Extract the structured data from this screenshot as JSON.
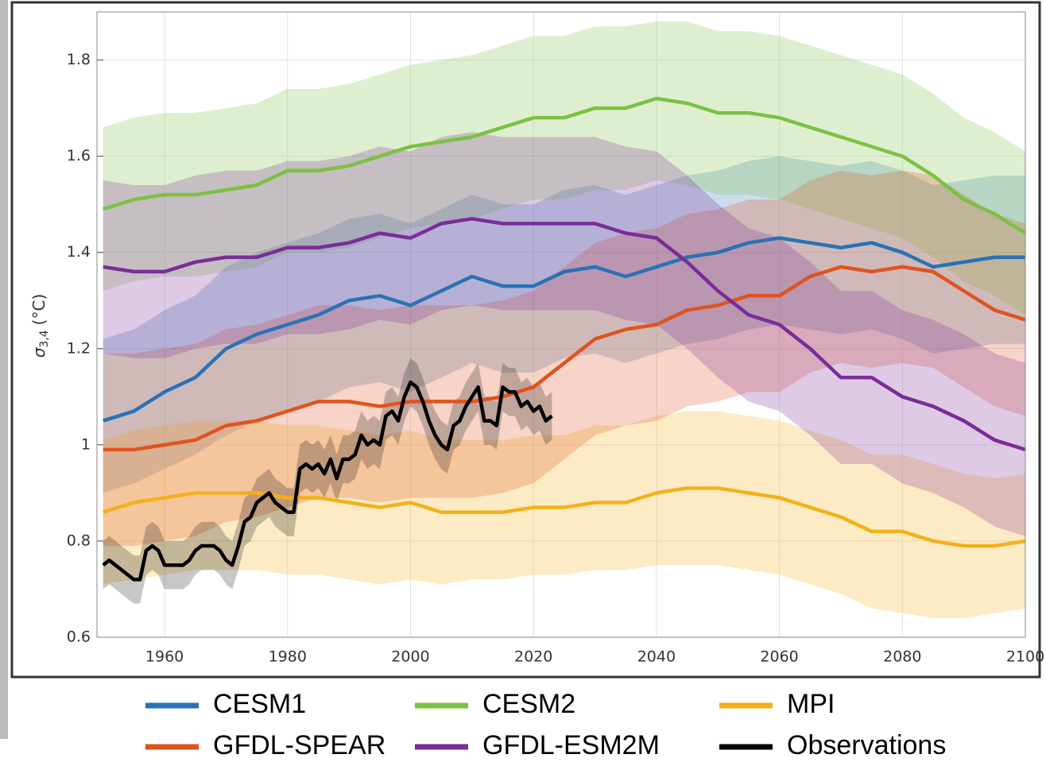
{
  "chart_data": {
    "type": "line",
    "ylabel_symbol": "σ",
    "ylabel_subscript": "3,4",
    "ylabel_unit": "(°C)",
    "xlim": [
      1949,
      2100
    ],
    "ylim": [
      0.6,
      1.9
    ],
    "xticks": [
      1960,
      1980,
      2000,
      2020,
      2040,
      2060,
      2080,
      2100
    ],
    "yticks": [
      0.6,
      0.8,
      1,
      1.2,
      1.4,
      1.6,
      1.8
    ],
    "grid": true,
    "legend": "bottom",
    "x": [
      1950,
      1955,
      1960,
      1965,
      1970,
      1975,
      1980,
      1985,
      1990,
      1995,
      2000,
      2005,
      2010,
      2015,
      2020,
      2025,
      2030,
      2035,
      2040,
      2045,
      2050,
      2055,
      2060,
      2065,
      2070,
      2075,
      2080,
      2085,
      2090,
      2095,
      2100
    ],
    "series": [
      {
        "name": "CESM1",
        "color": "#2a72b5",
        "values": [
          1.05,
          1.07,
          1.11,
          1.14,
          1.2,
          1.23,
          1.25,
          1.27,
          1.3,
          1.31,
          1.29,
          1.32,
          1.35,
          1.33,
          1.33,
          1.36,
          1.37,
          1.35,
          1.37,
          1.39,
          1.4,
          1.42,
          1.43,
          1.42,
          1.41,
          1.42,
          1.4,
          1.37,
          1.38,
          1.39,
          1.39
        ],
        "band_lower": [
          0.9,
          0.92,
          0.95,
          0.98,
          1.02,
          1.05,
          1.07,
          1.09,
          1.12,
          1.13,
          1.11,
          1.14,
          1.17,
          1.15,
          1.15,
          1.18,
          1.19,
          1.17,
          1.19,
          1.21,
          1.22,
          1.24,
          1.25,
          1.24,
          1.23,
          1.24,
          1.22,
          1.19,
          1.2,
          1.21,
          1.21
        ],
        "band_upper": [
          1.22,
          1.24,
          1.28,
          1.31,
          1.37,
          1.4,
          1.42,
          1.44,
          1.47,
          1.48,
          1.46,
          1.49,
          1.52,
          1.5,
          1.5,
          1.53,
          1.54,
          1.52,
          1.54,
          1.56,
          1.57,
          1.59,
          1.6,
          1.59,
          1.58,
          1.59,
          1.57,
          1.54,
          1.55,
          1.56,
          1.56
        ]
      },
      {
        "name": "CESM2",
        "color": "#7cc143",
        "values": [
          1.49,
          1.51,
          1.52,
          1.52,
          1.53,
          1.54,
          1.57,
          1.57,
          1.58,
          1.6,
          1.62,
          1.63,
          1.64,
          1.66,
          1.68,
          1.68,
          1.7,
          1.7,
          1.72,
          1.71,
          1.69,
          1.69,
          1.68,
          1.66,
          1.64,
          1.62,
          1.6,
          1.56,
          1.51,
          1.48,
          1.44
        ],
        "band_lower": [
          1.32,
          1.34,
          1.35,
          1.35,
          1.36,
          1.37,
          1.4,
          1.4,
          1.41,
          1.43,
          1.45,
          1.46,
          1.47,
          1.49,
          1.51,
          1.51,
          1.53,
          1.53,
          1.55,
          1.54,
          1.52,
          1.52,
          1.51,
          1.49,
          1.47,
          1.45,
          1.43,
          1.39,
          1.34,
          1.31,
          1.27
        ],
        "band_upper": [
          1.66,
          1.68,
          1.69,
          1.69,
          1.7,
          1.71,
          1.74,
          1.74,
          1.75,
          1.77,
          1.79,
          1.8,
          1.81,
          1.83,
          1.85,
          1.85,
          1.87,
          1.87,
          1.88,
          1.88,
          1.86,
          1.86,
          1.85,
          1.83,
          1.81,
          1.79,
          1.77,
          1.73,
          1.68,
          1.65,
          1.61
        ]
      },
      {
        "name": "MPI",
        "color": "#f4b019",
        "values": [
          0.86,
          0.88,
          0.89,
          0.9,
          0.9,
          0.9,
          0.89,
          0.89,
          0.88,
          0.87,
          0.88,
          0.86,
          0.86,
          0.86,
          0.87,
          0.87,
          0.88,
          0.88,
          0.9,
          0.91,
          0.91,
          0.9,
          0.89,
          0.87,
          0.85,
          0.82,
          0.82,
          0.8,
          0.79,
          0.79,
          0.8
        ],
        "band_lower": [
          0.71,
          0.72,
          0.73,
          0.74,
          0.74,
          0.74,
          0.73,
          0.73,
          0.72,
          0.71,
          0.72,
          0.71,
          0.72,
          0.72,
          0.73,
          0.73,
          0.74,
          0.74,
          0.75,
          0.75,
          0.75,
          0.74,
          0.73,
          0.71,
          0.69,
          0.66,
          0.65,
          0.64,
          0.64,
          0.65,
          0.66
        ],
        "band_upper": [
          1.01,
          1.03,
          1.04,
          1.05,
          1.05,
          1.05,
          1.04,
          1.04,
          1.03,
          1.02,
          1.03,
          1.01,
          1.01,
          1.01,
          1.02,
          1.02,
          1.04,
          1.04,
          1.06,
          1.07,
          1.07,
          1.06,
          1.05,
          1.03,
          1.01,
          0.98,
          0.98,
          0.96,
          0.94,
          0.93,
          0.94
        ]
      },
      {
        "name": "GFDL-SPEAR",
        "color": "#e0531f",
        "values": [
          0.99,
          0.99,
          1.0,
          1.01,
          1.04,
          1.05,
          1.07,
          1.09,
          1.09,
          1.08,
          1.09,
          1.09,
          1.09,
          1.1,
          1.12,
          1.17,
          1.22,
          1.24,
          1.25,
          1.28,
          1.29,
          1.31,
          1.31,
          1.35,
          1.37,
          1.36,
          1.37,
          1.36,
          1.32,
          1.28,
          1.26
        ],
        "band_lower": [
          0.79,
          0.79,
          0.8,
          0.81,
          0.84,
          0.85,
          0.87,
          0.89,
          0.89,
          0.88,
          0.89,
          0.89,
          0.89,
          0.9,
          0.92,
          0.97,
          1.02,
          1.04,
          1.05,
          1.08,
          1.09,
          1.11,
          1.11,
          1.15,
          1.17,
          1.16,
          1.17,
          1.16,
          1.12,
          1.08,
          1.06
        ],
        "band_upper": [
          1.19,
          1.19,
          1.2,
          1.21,
          1.24,
          1.25,
          1.27,
          1.29,
          1.29,
          1.28,
          1.29,
          1.29,
          1.29,
          1.3,
          1.32,
          1.37,
          1.42,
          1.44,
          1.45,
          1.48,
          1.49,
          1.51,
          1.51,
          1.55,
          1.57,
          1.56,
          1.57,
          1.56,
          1.52,
          1.48,
          1.46
        ]
      },
      {
        "name": "GFDL-ESM2M",
        "color": "#7a2d98",
        "values": [
          1.37,
          1.36,
          1.36,
          1.38,
          1.39,
          1.39,
          1.41,
          1.41,
          1.42,
          1.44,
          1.43,
          1.46,
          1.47,
          1.46,
          1.46,
          1.46,
          1.46,
          1.44,
          1.43,
          1.38,
          1.32,
          1.27,
          1.25,
          1.2,
          1.14,
          1.14,
          1.1,
          1.08,
          1.05,
          1.01,
          0.99
        ],
        "band_lower": [
          1.19,
          1.18,
          1.18,
          1.2,
          1.21,
          1.21,
          1.23,
          1.23,
          1.24,
          1.26,
          1.25,
          1.28,
          1.29,
          1.28,
          1.28,
          1.28,
          1.28,
          1.26,
          1.25,
          1.2,
          1.14,
          1.09,
          1.07,
          1.02,
          0.96,
          0.96,
          0.92,
          0.9,
          0.87,
          0.83,
          0.81
        ],
        "band_upper": [
          1.55,
          1.54,
          1.54,
          1.56,
          1.57,
          1.57,
          1.59,
          1.59,
          1.6,
          1.62,
          1.61,
          1.64,
          1.65,
          1.64,
          1.64,
          1.64,
          1.64,
          1.62,
          1.61,
          1.56,
          1.5,
          1.45,
          1.43,
          1.38,
          1.32,
          1.32,
          1.28,
          1.26,
          1.23,
          1.19,
          1.17
        ]
      },
      {
        "name": "Observations",
        "color": "#000000",
        "x": [
          1950,
          1951,
          1952,
          1953,
          1954,
          1955,
          1956,
          1957,
          1958,
          1959,
          1960,
          1961,
          1962,
          1963,
          1964,
          1965,
          1966,
          1967,
          1968,
          1969,
          1970,
          1971,
          1972,
          1973,
          1974,
          1975,
          1976,
          1977,
          1978,
          1979,
          1980,
          1981,
          1982,
          1983,
          1984,
          1985,
          1986,
          1987,
          1988,
          1989,
          1990,
          1991,
          1992,
          1993,
          1994,
          1995,
          1996,
          1997,
          1998,
          1999,
          2000,
          2001,
          2002,
          2003,
          2004,
          2005,
          2006,
          2007,
          2008,
          2009,
          2010,
          2011,
          2012,
          2013,
          2014,
          2015,
          2016,
          2017,
          2018,
          2019,
          2020,
          2021,
          2022,
          2023
        ],
        "values": [
          0.75,
          0.76,
          0.75,
          0.74,
          0.73,
          0.72,
          0.72,
          0.78,
          0.79,
          0.78,
          0.75,
          0.75,
          0.75,
          0.75,
          0.76,
          0.78,
          0.79,
          0.79,
          0.79,
          0.78,
          0.76,
          0.75,
          0.79,
          0.84,
          0.85,
          0.88,
          0.89,
          0.9,
          0.88,
          0.87,
          0.86,
          0.86,
          0.95,
          0.96,
          0.95,
          0.96,
          0.94,
          0.97,
          0.93,
          0.97,
          0.97,
          0.98,
          1.02,
          1.0,
          1.01,
          1.0,
          1.06,
          1.07,
          1.05,
          1.1,
          1.13,
          1.12,
          1.09,
          1.05,
          1.02,
          1.0,
          0.99,
          1.04,
          1.05,
          1.08,
          1.1,
          1.12,
          1.05,
          1.05,
          1.04,
          1.12,
          1.11,
          1.11,
          1.08,
          1.09,
          1.07,
          1.08,
          1.05,
          1.06
        ],
        "band_lower": [
          0.7,
          0.71,
          0.7,
          0.69,
          0.68,
          0.67,
          0.67,
          0.73,
          0.74,
          0.73,
          0.7,
          0.7,
          0.7,
          0.7,
          0.71,
          0.73,
          0.74,
          0.74,
          0.74,
          0.73,
          0.71,
          0.7,
          0.74,
          0.79,
          0.8,
          0.83,
          0.84,
          0.85,
          0.83,
          0.82,
          0.81,
          0.81,
          0.9,
          0.91,
          0.9,
          0.91,
          0.89,
          0.92,
          0.88,
          0.92,
          0.92,
          0.93,
          0.97,
          0.95,
          0.96,
          0.95,
          1.01,
          1.02,
          1.0,
          1.05,
          1.08,
          1.07,
          1.04,
          1.0,
          0.97,
          0.95,
          0.94,
          0.99,
          1.0,
          1.03,
          1.05,
          1.07,
          1.0,
          1.0,
          0.99,
          1.07,
          1.06,
          1.06,
          1.03,
          1.04,
          1.02,
          1.03,
          1.0,
          1.01
        ],
        "band_upper": [
          0.8,
          0.81,
          0.8,
          0.79,
          0.78,
          0.77,
          0.77,
          0.83,
          0.84,
          0.83,
          0.8,
          0.8,
          0.8,
          0.8,
          0.81,
          0.83,
          0.84,
          0.84,
          0.84,
          0.83,
          0.81,
          0.8,
          0.84,
          0.89,
          0.9,
          0.93,
          0.94,
          0.95,
          0.93,
          0.92,
          0.91,
          0.91,
          1.0,
          1.01,
          1.0,
          1.01,
          0.99,
          1.02,
          0.98,
          1.02,
          1.02,
          1.03,
          1.07,
          1.05,
          1.06,
          1.05,
          1.11,
          1.12,
          1.1,
          1.15,
          1.18,
          1.17,
          1.14,
          1.1,
          1.07,
          1.05,
          1.04,
          1.09,
          1.1,
          1.13,
          1.15,
          1.17,
          1.1,
          1.1,
          1.09,
          1.17,
          1.16,
          1.16,
          1.13,
          1.14,
          1.12,
          1.13,
          1.1,
          1.11
        ]
      }
    ]
  }
}
